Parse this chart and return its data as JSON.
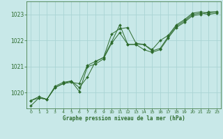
{
  "title": "Graphe pression niveau de la mer (hPa)",
  "bg_color": "#c8e8e8",
  "grid_color": "#aad4d4",
  "line_color": "#2d6b2d",
  "marker_color": "#2d6b2d",
  "xlim": [
    -0.5,
    23.5
  ],
  "ylim": [
    1019.4,
    1023.5
  ],
  "yticks": [
    1020,
    1021,
    1022,
    1023
  ],
  "xticks": [
    0,
    1,
    2,
    3,
    4,
    5,
    6,
    7,
    8,
    9,
    10,
    11,
    12,
    13,
    14,
    15,
    16,
    17,
    18,
    19,
    20,
    21,
    22,
    23
  ],
  "series": [
    [
      1019.7,
      1019.85,
      1019.75,
      1020.2,
      1020.35,
      1020.4,
      1020.35,
      1021.05,
      1021.2,
      1021.35,
      1022.25,
      1022.45,
      1022.5,
      1021.9,
      1021.85,
      1021.65,
      1022.0,
      1022.2,
      1022.6,
      1022.8,
      1023.05,
      1023.1,
      1023.05,
      1023.1
    ],
    [
      1019.7,
      1019.8,
      1019.75,
      1020.2,
      1020.35,
      1020.45,
      1020.2,
      1020.6,
      1021.2,
      1021.35,
      1021.95,
      1022.6,
      1021.85,
      1021.85,
      1021.85,
      1021.6,
      1021.7,
      1022.15,
      1022.55,
      1022.75,
      1023.0,
      1023.05,
      1023.0,
      1023.05
    ],
    [
      1019.5,
      1019.8,
      1019.75,
      1020.25,
      1020.4,
      1020.45,
      1020.05,
      1021.0,
      1021.1,
      1021.3,
      1021.9,
      1022.3,
      1021.85,
      1021.85,
      1021.65,
      1021.55,
      1021.65,
      1022.1,
      1022.5,
      1022.7,
      1022.95,
      1023.0,
      1023.1,
      1023.1
    ]
  ]
}
